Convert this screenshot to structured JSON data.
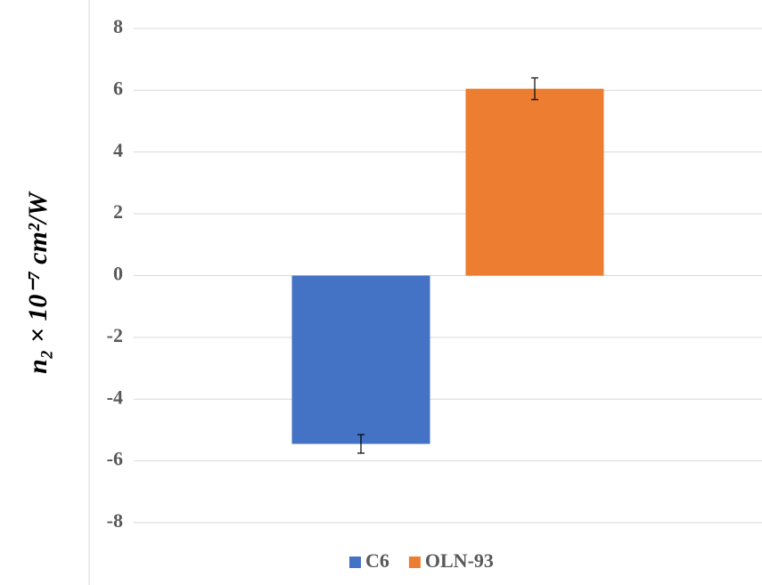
{
  "chart_data": {
    "type": "bar",
    "y_label": "n₂ × 10⁻⁷ cm²/W",
    "categories": [
      null
    ],
    "series": [
      {
        "name": "C6",
        "color": "#4472c4",
        "values": [
          -5.45
        ],
        "errors": [
          0.3
        ]
      },
      {
        "name": "OLN-93",
        "color": "#ed7d31",
        "values": [
          6.05
        ],
        "errors": [
          0.35
        ]
      }
    ],
    "ylim": [
      -8,
      8
    ],
    "yticks": [
      -8,
      -6,
      -4,
      -2,
      0,
      2,
      4,
      6,
      8
    ],
    "grid": true,
    "legend": "bottom"
  }
}
